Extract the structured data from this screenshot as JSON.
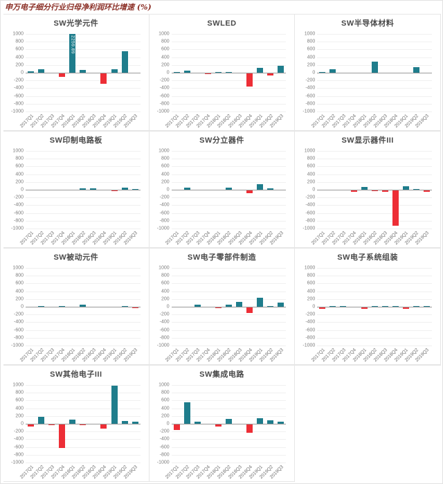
{
  "page_title": "申万电子细分行业归母净利润环比增速 (%)",
  "colors": {
    "positive_bar": "#1f7d8c",
    "negative_bar": "#ed2e36",
    "page_title_text": "#8b2f26",
    "chart_title_text": "#4a4a4a",
    "axis_line": "#9a9a9a",
    "grid_line": "#f0f0f0",
    "cell_border": "#e6e6e6"
  },
  "chart_data": {
    "type": "bar",
    "categories": [
      "2017Q1",
      "2017Q2",
      "2017Q3",
      "2017Q4",
      "2018Q1",
      "2018Q2",
      "2018Q3",
      "2018Q4",
      "2019Q1",
      "2019Q2",
      "2019Q3"
    ],
    "ylim": [
      -1000,
      1000
    ],
    "y_ticks": [
      1000,
      800,
      600,
      400,
      200,
      0,
      -200,
      -400,
      -600,
      -800,
      -1000
    ],
    "grid": true,
    "legend": "none",
    "unit": "%",
    "charts": [
      {
        "title": "SW光学元件",
        "values": [
          40,
          90,
          -15,
          -110,
          2259.89,
          75,
          -10,
          -280,
          85,
          550,
          -15
        ],
        "bar_label": {
          "index": 4,
          "text": "2259.89"
        },
        "note": "2018Q1 bar clipped at y-axis max 1000"
      },
      {
        "title": "SWLED",
        "values": [
          10,
          45,
          -5,
          -40,
          20,
          20,
          -25,
          -350,
          130,
          -80,
          185
        ]
      },
      {
        "title": "SW半导体材料",
        "values": [
          20,
          90,
          -20,
          -5,
          -25,
          290,
          -20,
          -10,
          -20,
          150,
          5
        ]
      },
      {
        "title": "SW印制电路板",
        "values": [
          -10,
          -20,
          -5,
          -15,
          -15,
          35,
          40,
          -10,
          -35,
          55,
          25
        ]
      },
      {
        "title": "SW分立器件",
        "values": [
          -10,
          55,
          -10,
          -15,
          -10,
          55,
          -10,
          -90,
          150,
          30,
          -10
        ]
      },
      {
        "title": "SW显示器件III",
        "values": [
          -10,
          0,
          -10,
          -60,
          75,
          -40,
          -50,
          -920,
          85,
          25,
          -60
        ]
      },
      {
        "title": "SW被动元件",
        "values": [
          -15,
          25,
          -15,
          10,
          -20,
          55,
          0,
          -25,
          -15,
          25,
          -40
        ]
      },
      {
        "title": "SW电子零部件制造",
        "values": [
          -20,
          0,
          45,
          -20,
          -35,
          45,
          130,
          -160,
          230,
          25,
          100
        ]
      },
      {
        "title": "SW电子系统组装",
        "values": [
          -50,
          25,
          25,
          -10,
          -45,
          20,
          25,
          25,
          -55,
          25,
          25
        ]
      },
      {
        "title": "SW其他电子III",
        "values": [
          -80,
          185,
          -30,
          -620,
          105,
          -40,
          -5,
          -120,
          980,
          65,
          45
        ]
      },
      {
        "title": "SW集成电路",
        "values": [
          -160,
          555,
          45,
          -15,
          -70,
          125,
          -5,
          -225,
          150,
          95,
          55
        ]
      }
    ]
  }
}
